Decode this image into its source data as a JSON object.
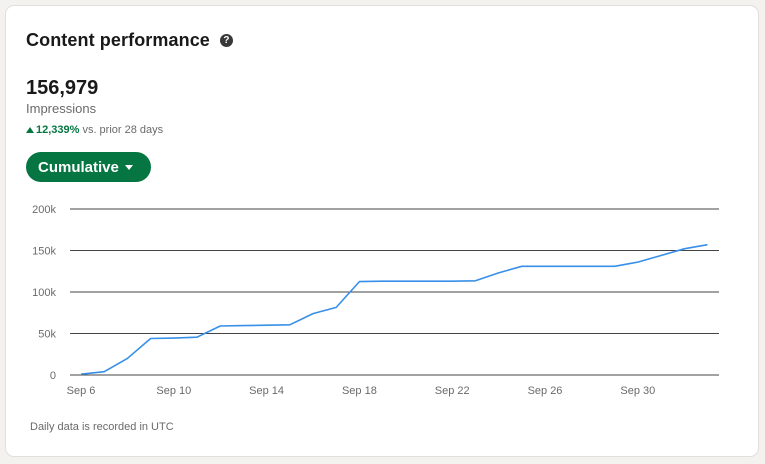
{
  "card": {
    "title": "Content performance",
    "help_icon": "question-circle-icon",
    "help_glyph": "?"
  },
  "metric": {
    "value": "156,979",
    "label": "Impressions",
    "change_pct": "12,339%",
    "change_suffix": "vs. prior 28 days",
    "change_direction": "up",
    "change_color": "#057642"
  },
  "view_selector": {
    "label": "Cumulative",
    "color": "#057642"
  },
  "footnote": "Daily data is recorded in UTC",
  "chart_data": {
    "type": "line",
    "ylim": [
      0,
      200000
    ],
    "y_ticks": [
      0,
      50000,
      100000,
      150000,
      200000
    ],
    "y_tick_labels": [
      "0",
      "50k",
      "100k",
      "150k",
      "200k"
    ],
    "x_ticks": [
      "Sep 6",
      "Sep 10",
      "Sep 14",
      "Sep 18",
      "Sep 22",
      "Sep 26",
      "Sep 30"
    ],
    "x_tick_day_index": [
      0,
      4,
      8,
      12,
      16,
      20,
      24
    ],
    "grid": true,
    "line_color": "#378fe9",
    "series": [
      {
        "x": [
          "Sep 6",
          "Sep 7",
          "Sep 8",
          "Sep 9",
          "Sep 10",
          "Sep 11",
          "Sep 12",
          "Sep 13",
          "Sep 14",
          "Sep 15",
          "Sep 16",
          "Sep 17",
          "Sep 18",
          "Sep 19",
          "Sep 20",
          "Sep 21",
          "Sep 22",
          "Sep 23",
          "Sep 24",
          "Sep 25",
          "Sep 26",
          "Sep 27",
          "Sep 28",
          "Sep 29",
          "Sep 30",
          "Oct 1",
          "Oct 2",
          "Oct 3"
        ],
        "values": [
          1000,
          4000,
          20000,
          44000,
          44500,
          45500,
          59000,
          59500,
          60000,
          60500,
          74000,
          81500,
          112500,
          113000,
          113000,
          113000,
          113000,
          113500,
          123000,
          131000,
          131000,
          131000,
          131000,
          131000,
          136000,
          144000,
          152000,
          157000
        ]
      }
    ]
  }
}
